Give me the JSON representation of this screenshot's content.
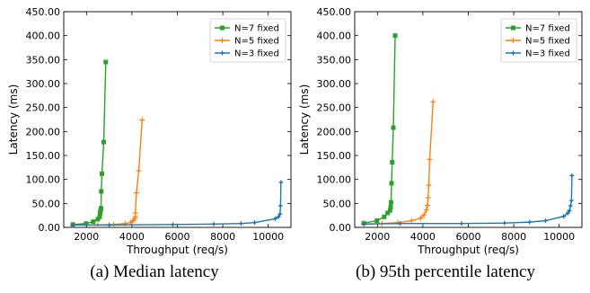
{
  "captions": [
    "(a) Median latency",
    "(b) 95th percentile latency"
  ],
  "colors": {
    "N=7 fixed": "#2ca02c",
    "N=5 fixed": "#ff7f0e",
    "N=3 fixed": "#1f77b4"
  },
  "chart_data": [
    {
      "type": "line",
      "title": "",
      "xlabel": "Throughput (req/s)",
      "ylabel": "Latency (ms)",
      "xlim": [
        1000,
        11000
      ],
      "ylim": [
        0,
        450
      ],
      "xticks": [
        "2000",
        "4000",
        "6000",
        "8000",
        "10000"
      ],
      "yticks": [
        "0.00",
        "50.00",
        "100.00",
        "150.00",
        "200.00",
        "250.00",
        "300.00",
        "350.00",
        "400.00",
        "450.00"
      ],
      "grid": false,
      "legend_position": "top-right",
      "series": [
        {
          "name": "N=7 fixed",
          "marker": "square",
          "x": [
            1400,
            1980,
            2300,
            2500,
            2580,
            2600,
            2620,
            2640,
            2650,
            2680,
            2760,
            2850
          ],
          "y": [
            6,
            8,
            12,
            17,
            22,
            30,
            35,
            40,
            75,
            112,
            178,
            345
          ]
        },
        {
          "name": "N=5 fixed",
          "marker": "plus",
          "x": [
            1400,
            2500,
            3200,
            3700,
            3950,
            4050,
            4120,
            4150,
            4150,
            4200,
            4300,
            4450
          ],
          "y": [
            5,
            5,
            6,
            8,
            10,
            14,
            18,
            22,
            30,
            72,
            118,
            224
          ]
        },
        {
          "name": "N=3 fixed",
          "marker": "star",
          "x": [
            1400,
            3000,
            5800,
            7600,
            8800,
            9400,
            10300,
            10450,
            10520,
            10540,
            10560
          ],
          "y": [
            5,
            5,
            6,
            7,
            8,
            10,
            18,
            22,
            28,
            45,
            94
          ]
        }
      ]
    },
    {
      "type": "line",
      "title": "",
      "xlabel": "Throughput (req/s)",
      "ylabel": "Latency (ms)",
      "xlim": [
        1000,
        11000
      ],
      "ylim": [
        0,
        450
      ],
      "xticks": [
        "2000",
        "4000",
        "6000",
        "8000",
        "10000"
      ],
      "yticks": [
        "0.00",
        "50.00",
        "100.00",
        "150.00",
        "200.00",
        "250.00",
        "300.00",
        "350.00",
        "400.00",
        "450.00"
      ],
      "grid": false,
      "legend_position": "top-right",
      "series": [
        {
          "name": "N=7 fixed",
          "marker": "square",
          "x": [
            1400,
            1980,
            2300,
            2450,
            2550,
            2580,
            2600,
            2620,
            2650,
            2700,
            2780
          ],
          "y": [
            9,
            14,
            22,
            30,
            35,
            42,
            52,
            92,
            136,
            208,
            400
          ]
        },
        {
          "name": "N=5 fixed",
          "marker": "plus",
          "x": [
            1400,
            2200,
            2900,
            3500,
            3900,
            4050,
            4150,
            4200,
            4230,
            4260,
            4300,
            4450
          ],
          "y": [
            7,
            8,
            10,
            14,
            19,
            26,
            36,
            46,
            62,
            88,
            142,
            262
          ]
        },
        {
          "name": "N=3 fixed",
          "marker": "star",
          "x": [
            1400,
            3000,
            5700,
            7600,
            8700,
            9400,
            10200,
            10380,
            10450,
            10500,
            10540,
            10560
          ],
          "y": [
            7,
            8,
            8,
            9,
            11,
            14,
            23,
            30,
            35,
            45,
            56,
            108
          ]
        }
      ]
    }
  ]
}
